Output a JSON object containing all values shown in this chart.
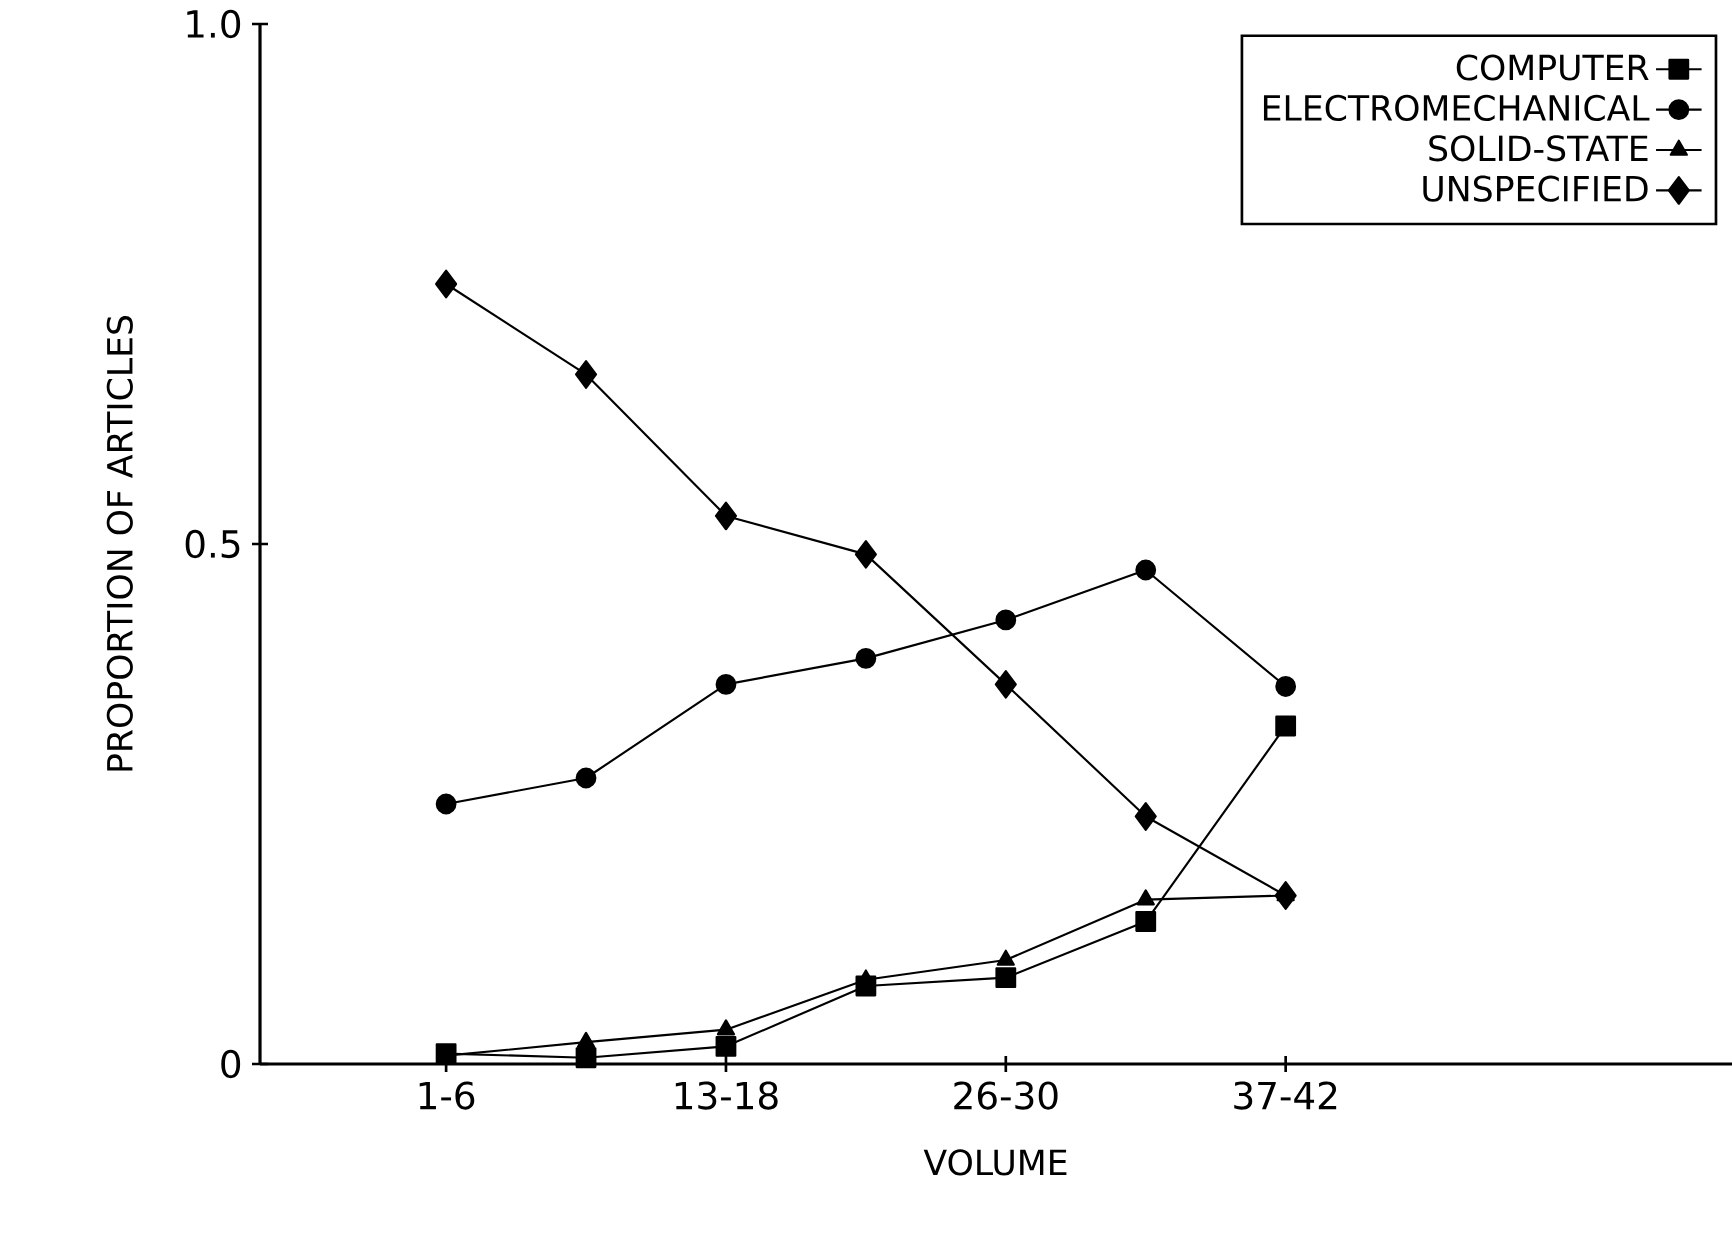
{
  "chart_data": {
    "type": "line",
    "xlabel": "VOLUME",
    "ylabel": "PROPORTION OF ARTICLES",
    "categories": [
      "1-6",
      null,
      "13-18",
      null,
      "26-30",
      null,
      "37-42"
    ],
    "ylim": [
      0,
      1.0
    ],
    "yticks": [
      0,
      0.5,
      {
        "value": 1.0,
        "label": "1.0"
      }
    ],
    "legend": "top right",
    "grid": false,
    "line_style": "solid",
    "series": [
      {
        "name": "COMPUTER",
        "color": "#000000",
        "marker": "square",
        "values": [
          0.01,
          0.006,
          0.017,
          0.075,
          0.083,
          0.137,
          0.325
        ]
      },
      {
        "name": "ELECTROMECHANICAL",
        "color": "#000000",
        "marker": "circle",
        "values": [
          0.25,
          0.275,
          0.365,
          0.39,
          0.427,
          0.475,
          0.363
        ]
      },
      {
        "name": "SOLID-STATE",
        "color": "#000000",
        "marker": "triangle",
        "values": [
          0.008,
          0.021,
          0.033,
          0.081,
          0.1,
          0.158,
          0.162
        ]
      },
      {
        "name": "UNSPECIFIED",
        "color": "#000000",
        "marker": "diamond",
        "values": [
          0.75,
          0.663,
          0.527,
          0.49,
          0.365,
          0.238,
          0.162
        ]
      }
    ]
  }
}
